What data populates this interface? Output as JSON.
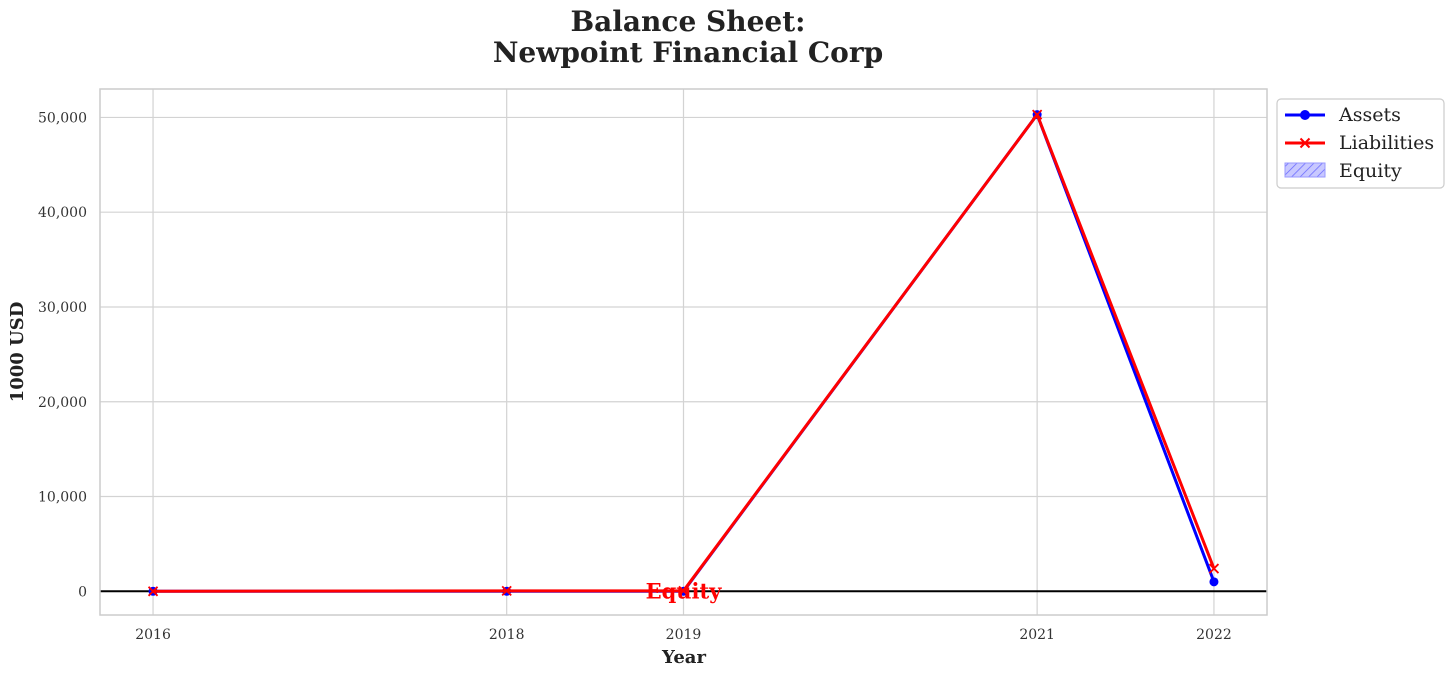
{
  "chart_data": {
    "type": "line",
    "title_line1": "Balance Sheet:",
    "title_line2": "Newpoint Financial Corp",
    "xlabel": "Year",
    "ylabel": "1000 USD",
    "x": [
      2016,
      2018,
      2019,
      2021,
      2022
    ],
    "x_tick_labels": [
      "2016",
      "2018",
      "2019",
      "2021",
      "2022"
    ],
    "xlim": [
      2015.7,
      2022.3
    ],
    "ylim": [
      -2500,
      53000
    ],
    "y_ticks": [
      0,
      10000,
      20000,
      30000,
      40000,
      50000
    ],
    "y_tick_labels": [
      "0",
      "10,000",
      "20,000",
      "30,000",
      "40,000",
      "50,000"
    ],
    "grid": true,
    "legend_position": "outside top-right",
    "series": [
      {
        "name": "Assets",
        "values": [
          0,
          0,
          0,
          50300,
          1000
        ],
        "color": "#0000ff",
        "marker": "circle"
      },
      {
        "name": "Liabilities",
        "values": [
          0,
          50,
          50,
          50300,
          2400
        ],
        "color": "#ff0000",
        "marker": "x"
      }
    ],
    "equity_legend": {
      "name": "Equity",
      "color": "#0000ff",
      "style": "hatched fill"
    },
    "annotation": {
      "text": "Equity",
      "x": 2019,
      "y": 0,
      "color": "#ff0000"
    },
    "zero_line_color": "#000000"
  }
}
